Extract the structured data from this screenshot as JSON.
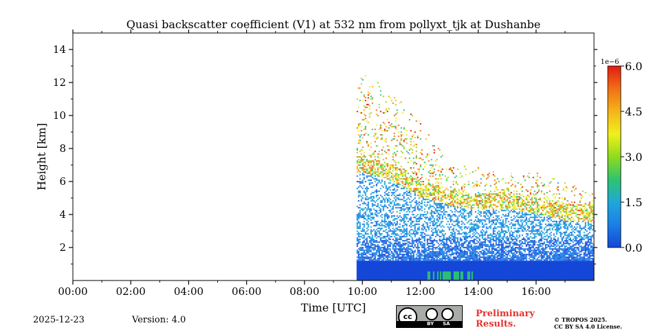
{
  "chart_data": {
    "type": "heatmap",
    "title": "Quasi backscatter coefficient (V1) at 532 nm from pollyxt_tjk at Dushanbe",
    "xlabel": "Time [UTC]",
    "ylabel": "Height [km]",
    "x_range_hours": [
      0,
      18
    ],
    "x_ticks": [
      {
        "hour": 0,
        "label": "00:00"
      },
      {
        "hour": 2,
        "label": "02:00"
      },
      {
        "hour": 4,
        "label": "04:00"
      },
      {
        "hour": 6,
        "label": "06:00"
      },
      {
        "hour": 8,
        "label": "08:00"
      },
      {
        "hour": 10,
        "label": "10:00"
      },
      {
        "hour": 12,
        "label": "12:00"
      },
      {
        "hour": 14,
        "label": "14:00"
      },
      {
        "hour": 16,
        "label": "16:00"
      }
    ],
    "y_range_km": [
      0,
      15
    ],
    "y_ticks": [
      2,
      4,
      6,
      8,
      10,
      12,
      14
    ],
    "data_start_hour": 9.8,
    "data_end_hour": 18,
    "colorbar": {
      "exponent_label": "1e−6",
      "range": [
        0.0,
        6.0
      ],
      "ticks": [
        "0.0",
        "1.5",
        "3.0",
        "4.5",
        "6.0"
      ],
      "tick_values": [
        0,
        1.5,
        3.0,
        4.5,
        6.0
      ],
      "colors": [
        "#1446d8",
        "#1b7fe6",
        "#1fa8d8",
        "#2fc46f",
        "#8fdc1c",
        "#f0f01c",
        "#f4b41a",
        "#f07015",
        "#e21c12"
      ]
    },
    "profile": {
      "description_hours": [
        10,
        11,
        12,
        13,
        14,
        15,
        16,
        17,
        18
      ],
      "aerosol_layer_top_km": [
        7.5,
        7.0,
        6.0,
        5.5,
        5.2,
        5.3,
        5.0,
        4.6,
        4.5
      ],
      "high_signal_top_km": [
        12.5,
        11.5,
        9.5,
        7.0,
        6.8,
        6.5,
        6.5,
        6.0,
        5.5
      ]
    }
  },
  "footer": {
    "date": "2025-12-23",
    "version": "Version: 4.0",
    "preliminary_line1": "Preliminary",
    "preliminary_line2": "Results.",
    "copyright_line1": "© TROPOS 2025.",
    "copyright_line2": "CC BY SA 4.0 License.",
    "badge_cc": "cc",
    "badge_by": "BY",
    "badge_sa": "SA"
  }
}
